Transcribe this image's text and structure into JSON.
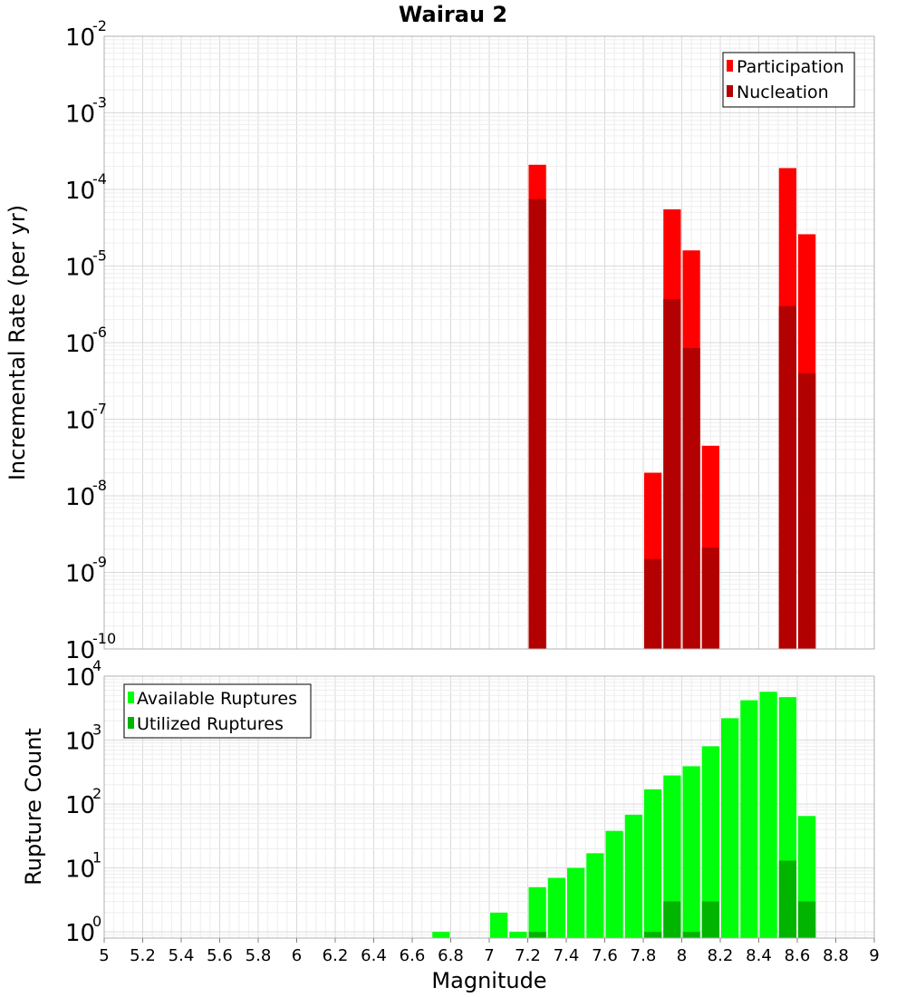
{
  "chart_data": [
    {
      "type": "bar",
      "title": "Wairau 2",
      "xlabel": "",
      "ylabel": "Incremental Rate (per yr)",
      "xlim": [
        5,
        9
      ],
      "ylim": [
        1e-10,
        0.01
      ],
      "yscale": "log",
      "grid": true,
      "legend": "top-right",
      "bar_width": 0.1,
      "series": [
        {
          "name": "Participation",
          "color": "#ff0000",
          "x": [
            7.25,
            7.85,
            7.95,
            8.05,
            8.15,
            8.55,
            8.65
          ],
          "values": [
            0.00021,
            2e-08,
            5.5e-05,
            1.6e-05,
            4.5e-08,
            0.00019,
            2.6e-05
          ]
        },
        {
          "name": "Nucleation",
          "color": "#b30000",
          "x": [
            7.25,
            7.85,
            7.95,
            8.05,
            8.15,
            8.55,
            8.65
          ],
          "values": [
            7.5e-05,
            1.5e-09,
            3.7e-06,
            8.5e-07,
            2.1e-09,
            3e-06,
            4e-07
          ]
        }
      ],
      "y_ticks": [
        {
          "base": "10",
          "exp": "-2"
        },
        {
          "base": "10",
          "exp": "-3"
        },
        {
          "base": "10",
          "exp": "-4"
        },
        {
          "base": "10",
          "exp": "-5"
        },
        {
          "base": "10",
          "exp": "-6"
        },
        {
          "base": "10",
          "exp": "-7"
        },
        {
          "base": "10",
          "exp": "-8"
        },
        {
          "base": "10",
          "exp": "-9"
        },
        {
          "base": "10",
          "exp": "-10"
        }
      ]
    },
    {
      "type": "bar",
      "title": "",
      "xlabel": "Magnitude",
      "ylabel": "Rupture Count",
      "xlim": [
        5,
        9
      ],
      "ylim": [
        0.8,
        10000.0
      ],
      "yscale": "log",
      "grid": true,
      "legend": "top-left",
      "bar_width": 0.1,
      "series": [
        {
          "name": "Available Ruptures",
          "color": "#00ff0a",
          "x": [
            6.75,
            7.05,
            7.15,
            7.25,
            7.35,
            7.45,
            7.55,
            7.65,
            7.75,
            7.85,
            7.95,
            8.05,
            8.15,
            8.25,
            8.35,
            8.45,
            8.55,
            8.65
          ],
          "values": [
            1,
            2,
            1,
            5,
            7,
            10,
            17,
            38,
            68,
            170,
            280,
            390,
            800,
            2200,
            4200,
            5700,
            4700,
            65
          ]
        },
        {
          "name": "Utilized Ruptures",
          "color": "#00b400",
          "x": [
            7.25,
            7.85,
            7.95,
            8.05,
            8.15,
            8.55,
            8.65
          ],
          "values": [
            1,
            1,
            3,
            1,
            3,
            13,
            3
          ]
        }
      ],
      "y_ticks": [
        {
          "base": "10",
          "exp": "4"
        },
        {
          "base": "10",
          "exp": "3"
        },
        {
          "base": "10",
          "exp": "2"
        },
        {
          "base": "10",
          "exp": "1"
        },
        {
          "base": "10",
          "exp": "0"
        }
      ],
      "x_tick_labels": [
        "5",
        "5.2",
        "5.4",
        "5.6",
        "5.8",
        "6",
        "6.2",
        "6.4",
        "6.6",
        "6.8",
        "7",
        "7.2",
        "7.4",
        "7.6",
        "7.8",
        "8",
        "8.2",
        "8.4",
        "8.6",
        "8.8",
        "9"
      ]
    }
  ]
}
